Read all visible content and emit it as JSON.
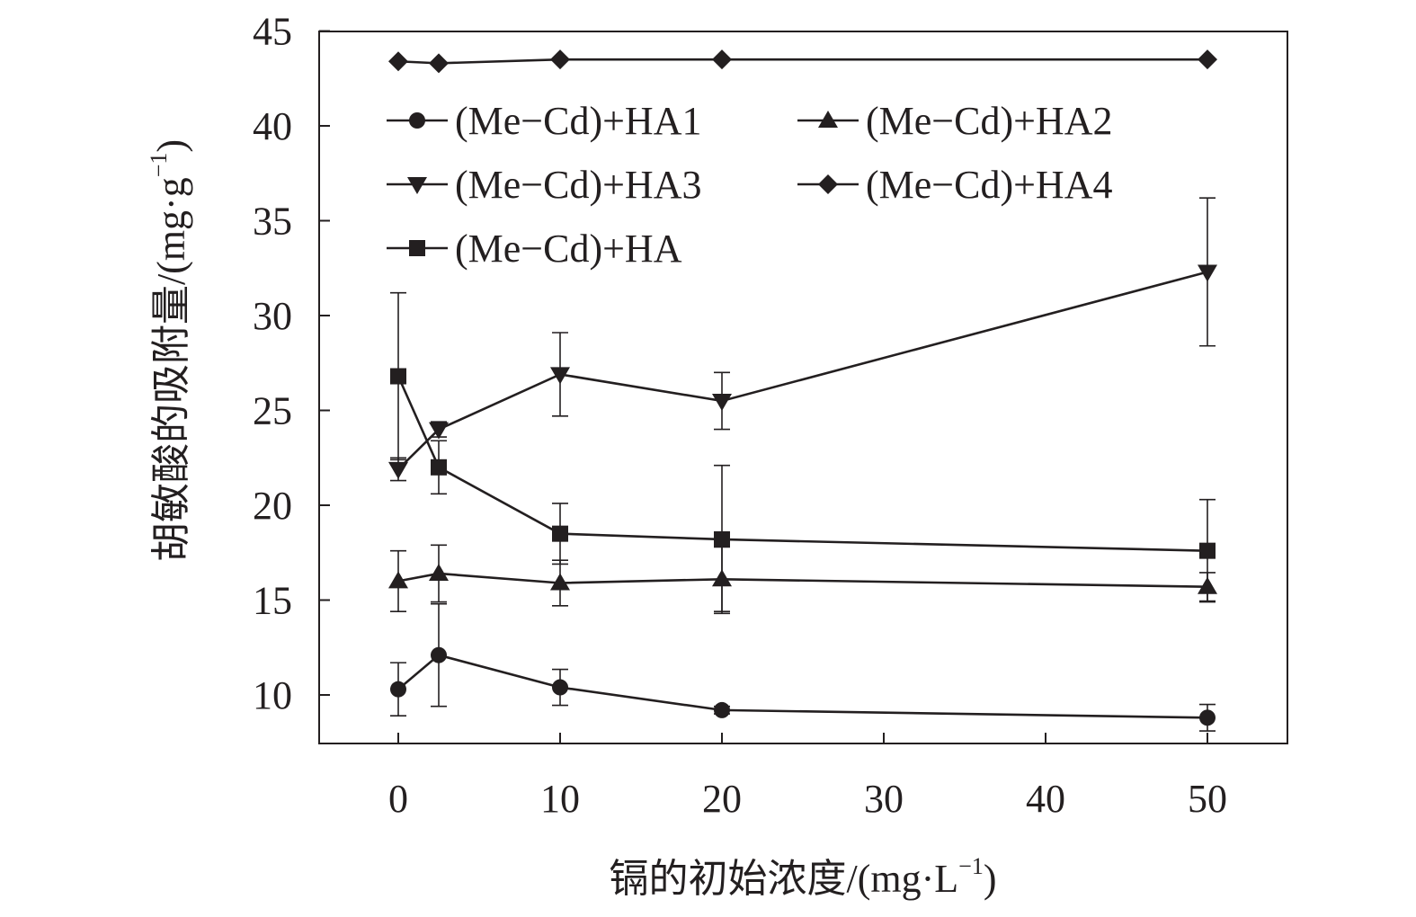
{
  "chart_data": {
    "type": "line",
    "title": "",
    "xlabel": "镉的初始浓度/(mg·L",
    "xlabel_sup": "−1",
    "xlabel_end": ")",
    "ylabel": "胡敏酸的吸附量/(mg·g",
    "ylabel_sup": "−1",
    "ylabel_end": ")",
    "xlim": [
      -5,
      55
    ],
    "ylim": [
      7.5,
      45
    ],
    "xticks": [
      0,
      10,
      20,
      30,
      40,
      50
    ],
    "xtick_labels": [
      "0",
      "10",
      "20",
      "30",
      "40",
      "50"
    ],
    "yticks": [
      10,
      15,
      20,
      25,
      30,
      35,
      40,
      45
    ],
    "ytick_labels": [
      "10",
      "15",
      "20",
      "25",
      "30",
      "35",
      "40",
      "45"
    ],
    "grid": false,
    "legend_position": "top-left",
    "x": [
      0,
      2.5,
      10,
      20,
      50
    ],
    "series": [
      {
        "name": "(Me−Cd)+HA1",
        "marker": "circle",
        "values": [
          10.3,
          12.1,
          10.4,
          9.2,
          8.8
        ],
        "errors": [
          1.4,
          2.7,
          0.95,
          0.2,
          0.7
        ]
      },
      {
        "name": "(Me−Cd)+HA2",
        "marker": "triangle-up",
        "values": [
          16.0,
          16.4,
          15.9,
          16.1,
          15.7
        ],
        "errors": [
          1.6,
          1.5,
          1.2,
          1.7,
          0.75
        ]
      },
      {
        "name": "(Me−Cd)+HA3",
        "marker": "triangle-down",
        "values": [
          21.9,
          24.0,
          26.9,
          25.5,
          32.3
        ],
        "errors": [
          0.6,
          0.4,
          2.2,
          1.5,
          3.9
        ]
      },
      {
        "name": "(Me−Cd)+HA4",
        "marker": "diamond",
        "values": [
          43.4,
          43.3,
          43.5,
          43.5,
          43.5
        ],
        "errors": [
          0,
          0,
          0,
          0,
          0
        ]
      },
      {
        "name": "(Me−Cd)+HA",
        "marker": "square",
        "values": [
          26.8,
          22.0,
          18.5,
          18.2,
          17.6
        ],
        "errors": [
          4.4,
          1.4,
          1.6,
          3.9,
          2.7
        ]
      }
    ]
  }
}
